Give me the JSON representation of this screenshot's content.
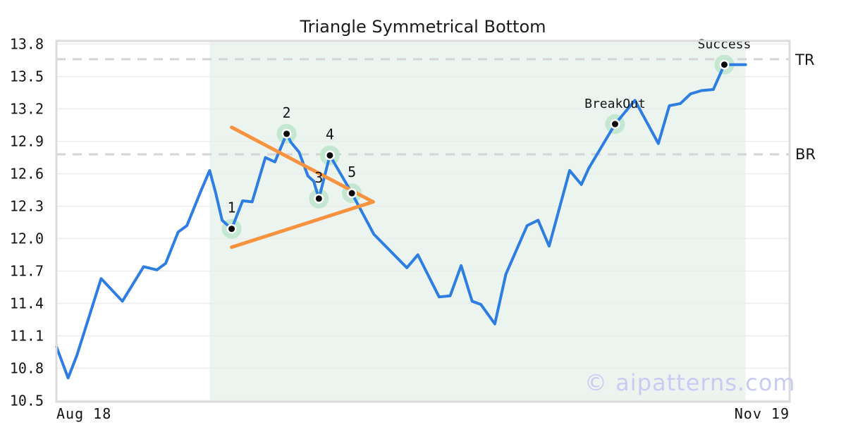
{
  "watermark": "© aipatterns.com",
  "chart_data": {
    "type": "line",
    "title": "Triangle Symmetrical Bottom",
    "x_axis": {
      "labels": [
        "Aug 18",
        "Nov 19"
      ]
    },
    "y_axis": {
      "range": [
        10.49,
        13.83
      ],
      "ticks": [
        13.8,
        13.5,
        13.2,
        12.9,
        12.6,
        12.3,
        12.0,
        11.7,
        11.4,
        11.1,
        10.8,
        10.5
      ]
    },
    "x_unit": "percent_of_plot_width",
    "series": [
      {
        "name": "price",
        "points": [
          [
            0.0,
            11.0
          ],
          [
            1.6,
            10.71
          ],
          [
            2.8,
            10.92
          ],
          [
            6.1,
            11.63
          ],
          [
            9.0,
            11.42
          ],
          [
            11.9,
            11.74
          ],
          [
            13.7,
            11.71
          ],
          [
            14.9,
            11.77
          ],
          [
            16.6,
            12.06
          ],
          [
            17.8,
            12.12
          ],
          [
            19.7,
            12.44
          ],
          [
            20.9,
            12.63
          ],
          [
            21.7,
            12.43
          ],
          [
            22.6,
            12.17
          ],
          [
            23.9,
            12.09
          ],
          [
            25.4,
            12.35
          ],
          [
            26.7,
            12.34
          ],
          [
            28.5,
            12.75
          ],
          [
            29.8,
            12.71
          ],
          [
            31.4,
            12.97
          ],
          [
            32.0,
            12.89
          ],
          [
            33.1,
            12.8
          ],
          [
            34.3,
            12.58
          ],
          [
            35.1,
            12.53
          ],
          [
            35.8,
            12.37
          ],
          [
            37.3,
            12.77
          ],
          [
            40.3,
            12.42
          ],
          [
            43.3,
            12.04
          ],
          [
            47.8,
            11.73
          ],
          [
            49.3,
            11.85
          ],
          [
            52.2,
            11.46
          ],
          [
            53.7,
            11.47
          ],
          [
            55.2,
            11.75
          ],
          [
            56.7,
            11.42
          ],
          [
            57.9,
            11.39
          ],
          [
            59.8,
            11.21
          ],
          [
            61.3,
            11.67
          ],
          [
            64.2,
            12.12
          ],
          [
            65.7,
            12.17
          ],
          [
            67.2,
            11.93
          ],
          [
            70.0,
            12.63
          ],
          [
            71.6,
            12.5
          ],
          [
            72.6,
            12.65
          ],
          [
            76.2,
            13.06
          ],
          [
            78.9,
            13.28
          ],
          [
            82.1,
            12.88
          ],
          [
            83.6,
            13.23
          ],
          [
            85.1,
            13.25
          ],
          [
            86.5,
            13.34
          ],
          [
            88.0,
            13.37
          ],
          [
            89.6,
            13.38
          ],
          [
            91.1,
            13.61
          ],
          [
            94.0,
            13.61
          ]
        ]
      }
    ],
    "pattern_points": [
      {
        "label": "1",
        "x": 23.9,
        "y": 12.09
      },
      {
        "label": "2",
        "x": 31.4,
        "y": 12.97
      },
      {
        "label": "3",
        "x": 35.8,
        "y": 12.37
      },
      {
        "label": "4",
        "x": 37.3,
        "y": 12.77
      },
      {
        "label": "5",
        "x": 40.3,
        "y": 12.42
      }
    ],
    "annotations": [
      {
        "label": "BreakOut",
        "x": 76.2,
        "y": 13.06
      },
      {
        "label": "Success",
        "x": 91.1,
        "y": 13.61
      }
    ],
    "trendlines": [
      {
        "name": "upper",
        "from": [
          23.9,
          13.03
        ],
        "to": [
          43.2,
          12.34
        ]
      },
      {
        "name": "lower",
        "from": [
          23.9,
          11.92
        ],
        "to": [
          43.2,
          12.34
        ]
      }
    ],
    "levels": [
      {
        "label": "TR",
        "value": 13.66
      },
      {
        "label": "BR",
        "value": 12.78
      }
    ],
    "shaded_region_x": [
      20.9,
      94.0
    ],
    "colors": {
      "line": "#2e7de2",
      "trendline": "#f7923f",
      "marker_halo": "#bfe5cc",
      "marker_dot": "#0a0a0a",
      "shade": "#ebf4ef",
      "grid": "#ebebeb",
      "level_dash": "#d5d5d5",
      "border": "#dcdcdc",
      "text": "#141414"
    }
  }
}
